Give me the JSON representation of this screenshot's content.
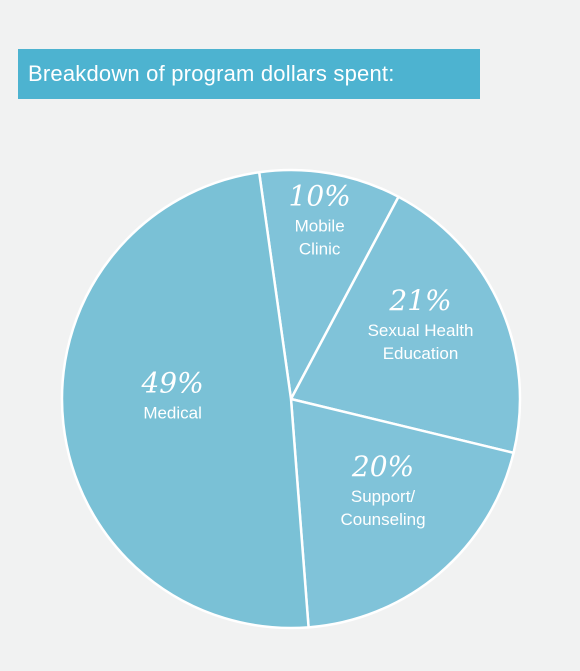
{
  "header": {
    "title": "Breakdown of program dollars spent:"
  },
  "colors": {
    "background": "#f1f2f2",
    "banner": "#4db3d0",
    "slice_medical": "#7ac1d6",
    "slice_other": "#80c3d9",
    "divider": "#ffffff",
    "text": "#ffffff"
  },
  "chart_data": {
    "type": "pie",
    "title": "Breakdown of program dollars spent:",
    "slices": [
      {
        "label_lines": [
          "Mobile",
          "Clinic"
        ],
        "percent_label": "10%",
        "value": 10
      },
      {
        "label_lines": [
          "Sexual Health",
          "Education"
        ],
        "percent_label": "21%",
        "value": 21
      },
      {
        "label_lines": [
          "Support/",
          "Counseling"
        ],
        "percent_label": "20%",
        "value": 20
      },
      {
        "label_lines": [
          "Medical"
        ],
        "percent_label": "49%",
        "value": 49
      }
    ]
  }
}
